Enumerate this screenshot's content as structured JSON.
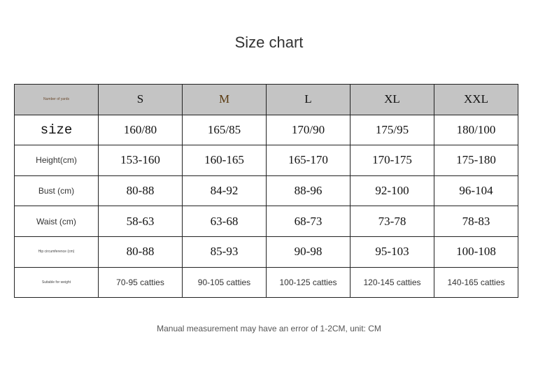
{
  "title": "Size chart",
  "header": {
    "label": "Number of yards",
    "sizes": [
      "S",
      "M",
      "L",
      "XL",
      "XXL"
    ]
  },
  "rows": [
    {
      "label": "size",
      "values": [
        "160/80",
        "165/85",
        "170/90",
        "175/95",
        "180/100"
      ]
    },
    {
      "label": "Height(cm)",
      "values": [
        "153-160",
        "160-165",
        "165-170",
        "170-175",
        "175-180"
      ]
    },
    {
      "label": "Bust (cm)",
      "values": [
        "80-88",
        "84-92",
        "88-96",
        "92-100",
        "96-104"
      ]
    },
    {
      "label": "Waist (cm)",
      "values": [
        "58-63",
        "63-68",
        "68-73",
        "73-78",
        "78-83"
      ]
    },
    {
      "label": "Hip circumference (cm)",
      "values": [
        "80-88",
        "85-93",
        "90-98",
        "95-103",
        "100-108"
      ]
    },
    {
      "label": "Suitable for weight",
      "values": [
        "70-95 catties",
        "90-105 catties",
        "100-125 catties",
        "120-145 catties",
        "140-165 catties"
      ]
    }
  ],
  "note": "Manual measurement may have an error of 1-2CM, unit: CM"
}
